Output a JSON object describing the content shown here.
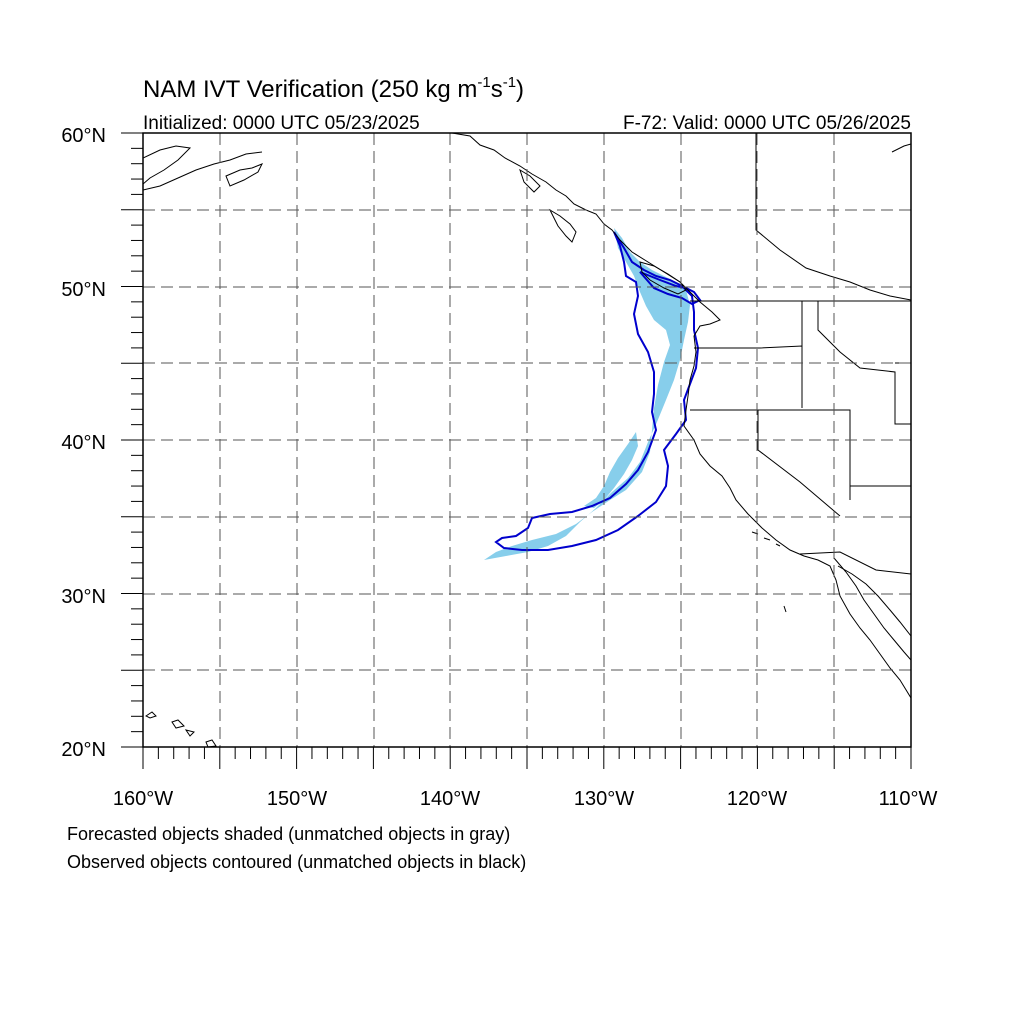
{
  "title": {
    "prefix": "NAM IVT Verification (250 kg m",
    "sup1": "-1",
    "mid": "s",
    "sup2": "-1",
    "suffix": ")"
  },
  "init_label": "Initialized: 0000 UTC 05/23/2025",
  "valid_label": "F-72: Valid: 0000 UTC 05/26/2025",
  "lat_labels": [
    "60°N",
    "50°N",
    "40°N",
    "30°N",
    "20°N"
  ],
  "lon_labels": [
    "160°W",
    "150°W",
    "140°W",
    "130°W",
    "120°W",
    "110°W"
  ],
  "footnotes": [
    "Forecasted objects shaded (unmatched objects in gray)",
    "Observed objects contoured (unmatched objects in black)"
  ],
  "colors": {
    "forecast_fill": "#87CEEB",
    "observed_contour": "#0000CD",
    "grid": "#555555",
    "coastline": "#000000"
  },
  "map_extent": {
    "lon_min": -160,
    "lon_max": -110,
    "lat_min": 20,
    "lat_max": 60
  }
}
